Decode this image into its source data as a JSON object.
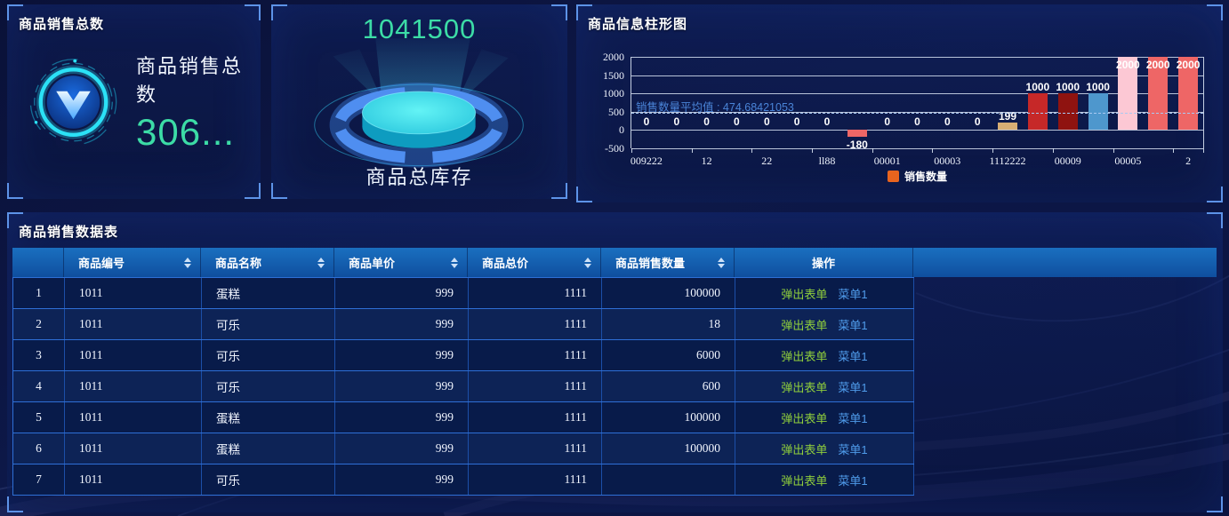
{
  "colors": {
    "accent_green": "#3cdca6",
    "link_green": "#8fce3c",
    "link_blue": "#4f9bea",
    "annotation_blue": "#4a84d8"
  },
  "panel_sales_total": {
    "title": "商品销售总数",
    "card_label": "商品销售总数",
    "card_value": "306...",
    "icon": "v-badge-icon"
  },
  "panel_inventory": {
    "value": "1041500",
    "label": "商品总库存",
    "icon": "glowing-disc-icon"
  },
  "panel_chart": {
    "title": "商品信息柱形图"
  },
  "chart_data": {
    "type": "bar",
    "title": "商品信息柱形图",
    "x_tick_labels": [
      "009222",
      "12",
      "22",
      "ll88",
      "00001",
      "00003",
      "1112222",
      "00009",
      "00005",
      "2"
    ],
    "values": [
      0,
      0,
      0,
      0,
      0,
      0,
      0,
      -180,
      0,
      0,
      0,
      0,
      199,
      1000,
      1000,
      1000,
      2000,
      2000,
      2000
    ],
    "bar_colors": [
      "",
      "",
      "",
      "",
      "",
      "",
      "",
      "#ee6666",
      "",
      "",
      "",
      "",
      "#d7ae74",
      "#c62828",
      "#8f1310",
      "#4e97cd",
      "#fcc8d4",
      "#ee6666",
      "#ee6666"
    ],
    "ylim": [
      -500,
      2000
    ],
    "y_ticks": [
      2000,
      1500,
      1000,
      500,
      0,
      -500
    ],
    "average_line": {
      "value": 474.68421053,
      "label": "销售数量平均值 : 474.68421053"
    },
    "legend": [
      {
        "label": "销售数量",
        "color": "#e8641e"
      }
    ],
    "legend_position": "bottom",
    "grid": true
  },
  "table_panel": {
    "title": "商品销售数据表",
    "columns": [
      {
        "label": "",
        "sortable": false
      },
      {
        "label": "商品编号",
        "sortable": true
      },
      {
        "label": "商品名称",
        "sortable": true
      },
      {
        "label": "商品单价",
        "sortable": true
      },
      {
        "label": "商品总价",
        "sortable": true
      },
      {
        "label": "商品销售数量",
        "sortable": true
      },
      {
        "label": "操作",
        "sortable": false
      }
    ],
    "rows": [
      {
        "index": "1",
        "id": "1011",
        "name": "蛋糕",
        "price": "999",
        "total": "1111",
        "qty": "100000"
      },
      {
        "index": "2",
        "id": "1011",
        "name": "可乐",
        "price": "999",
        "total": "1111",
        "qty": "18"
      },
      {
        "index": "3",
        "id": "1011",
        "name": "可乐",
        "price": "999",
        "total": "1111",
        "qty": "6000"
      },
      {
        "index": "4",
        "id": "1011",
        "name": "可乐",
        "price": "999",
        "total": "1111",
        "qty": "600"
      },
      {
        "index": "5",
        "id": "1011",
        "name": "蛋糕",
        "price": "999",
        "total": "1111",
        "qty": "100000"
      },
      {
        "index": "6",
        "id": "1011",
        "name": "蛋糕",
        "price": "999",
        "total": "1111",
        "qty": "100000"
      },
      {
        "index": "7",
        "id": "1011",
        "name": "可乐",
        "price": "999",
        "total": "1111",
        "qty": ""
      }
    ],
    "actions": {
      "form": "弹出表单",
      "menu": "菜单1"
    }
  }
}
